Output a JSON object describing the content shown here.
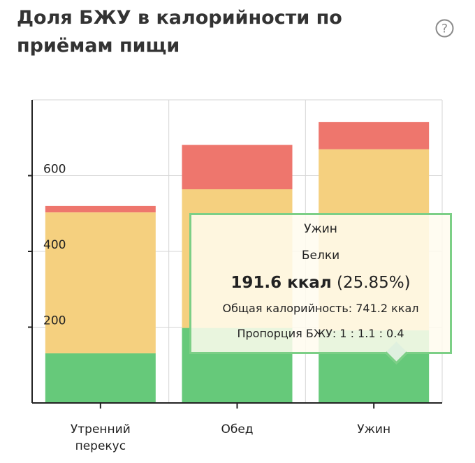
{
  "title": "Доля БЖУ в калорийности по приёмам пищи",
  "help_icon": "question-circle-icon",
  "chart_data": {
    "type": "bar",
    "stacked": true,
    "categories": [
      "Утренний перекус",
      "Обед",
      "Ужин"
    ],
    "category_lines": [
      [
        "Утренний",
        "перекус"
      ],
      [
        "Обед"
      ],
      [
        "Ужин"
      ]
    ],
    "series": [
      {
        "values": [
          131,
          198,
          191.6
        ],
        "color": "#66c97a"
      },
      {
        "values": [
          372,
          366,
          478
        ],
        "color": "#f5d07f"
      },
      {
        "values": [
          17,
          117,
          71.6
        ],
        "color": "#ee766d"
      }
    ],
    "ylim": [
      0,
      800
    ],
    "yticks": [
      200,
      400,
      600
    ],
    "grid": true
  },
  "tooltip": {
    "category": "Ужин",
    "series": "Белки",
    "value": "191.6 ккал",
    "percent": "(25.85%)",
    "total": "Общая калорийность: 741.2 ккал",
    "ratio": "Пропорция БЖУ: 1 : 1.1 : 0.4",
    "border_color": "#7ccf86"
  }
}
